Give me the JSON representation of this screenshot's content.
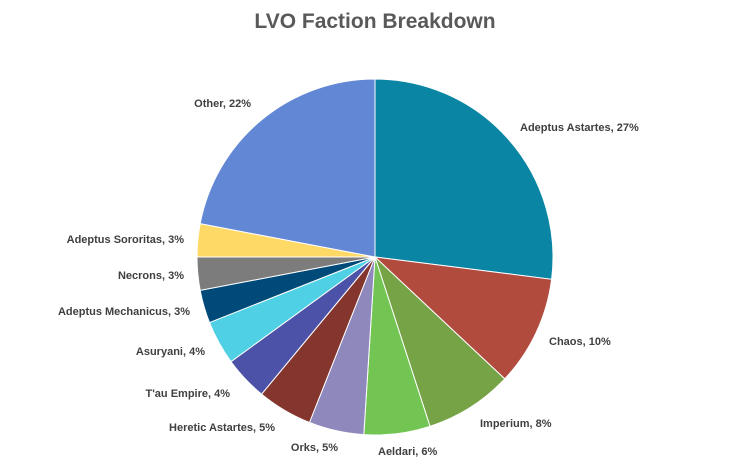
{
  "chart_data": {
    "type": "pie",
    "title": "LVO Faction Breakdown",
    "slices": [
      {
        "label": "Adeptus Astartes",
        "value": 27,
        "text": "Adeptus Astartes, 27%",
        "color": "#0a86a4"
      },
      {
        "label": "Chaos",
        "value": 10,
        "text": "Chaos, 10%",
        "color": "#b14b3e"
      },
      {
        "label": "Imperium",
        "value": 8,
        "text": "Imperium, 8%",
        "color": "#76a346"
      },
      {
        "label": "Aeldari",
        "value": 6,
        "text": "Aeldari, 6%",
        "color": "#72c552"
      },
      {
        "label": "Orks",
        "value": 5,
        "text": "Orks, 5%",
        "color": "#8f88bd"
      },
      {
        "label": "Heretic Astartes",
        "value": 5,
        "text": "Heretic Astartes, 5%",
        "color": "#84362e"
      },
      {
        "label": "T'au Empire",
        "value": 4,
        "text": "T'au Empire, 4%",
        "color": "#4b52a8"
      },
      {
        "label": "Asuryani",
        "value": 4,
        "text": "Asuryani, 4%",
        "color": "#4fd0e4"
      },
      {
        "label": "Adeptus Mechanicus",
        "value": 3,
        "text": "Adeptus Mechanicus, 3%",
        "color": "#004a7a"
      },
      {
        "label": "Necrons",
        "value": 3,
        "text": "Necrons, 3%",
        "color": "#7c7c7c"
      },
      {
        "label": "Adeptus Sororitas",
        "value": 3,
        "text": "Adeptus Sororitas, 3%",
        "color": "#ffd966"
      },
      {
        "label": "Other",
        "value": 22,
        "text": "Other, 22%",
        "color": "#6287d4"
      }
    ]
  }
}
